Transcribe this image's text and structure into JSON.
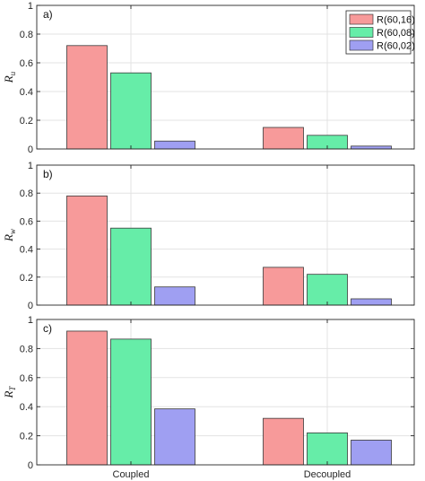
{
  "chart_data": [
    {
      "type": "bar",
      "panel_label": "a)",
      "ylabel": "R",
      "ylabel_sub": "u",
      "categories": [
        "Coupled",
        "Decoupled"
      ],
      "ylim": [
        0,
        1
      ],
      "yticks": [
        "0",
        "0.2",
        "0.4",
        "0.6",
        "0.8",
        "1"
      ],
      "grid": true,
      "legend": "top-right",
      "series": [
        {
          "name": "R(60,16)",
          "color": "#f79a9a",
          "values": [
            0.72,
            0.15
          ]
        },
        {
          "name": "R(60,08)",
          "color": "#66eda8",
          "values": [
            0.53,
            0.095
          ]
        },
        {
          "name": "R(60,02)",
          "color": "#9f9ff2",
          "values": [
            0.055,
            0.02
          ]
        }
      ]
    },
    {
      "type": "bar",
      "panel_label": "b)",
      "ylabel": "R",
      "ylabel_sub": "w",
      "categories": [
        "Coupled",
        "Decoupled"
      ],
      "ylim": [
        0,
        1
      ],
      "yticks": [
        "0",
        "0.2",
        "0.4",
        "0.6",
        "0.8",
        "1"
      ],
      "grid": true,
      "series": [
        {
          "name": "R(60,16)",
          "color": "#f79a9a",
          "values": [
            0.78,
            0.27
          ]
        },
        {
          "name": "R(60,08)",
          "color": "#66eda8",
          "values": [
            0.55,
            0.22
          ]
        },
        {
          "name": "R(60,02)",
          "color": "#9f9ff2",
          "values": [
            0.13,
            0.045
          ]
        }
      ]
    },
    {
      "type": "bar",
      "panel_label": "c)",
      "ylabel": "R",
      "ylabel_sub": "T",
      "categories": [
        "Coupled",
        "Decoupled"
      ],
      "ylim": [
        0,
        1
      ],
      "yticks": [
        "0",
        "0.2",
        "0.4",
        "0.6",
        "0.8",
        "1"
      ],
      "grid": true,
      "series": [
        {
          "name": "R(60,16)",
          "color": "#f79a9a",
          "values": [
            0.92,
            0.32
          ]
        },
        {
          "name": "R(60,08)",
          "color": "#66eda8",
          "values": [
            0.865,
            0.22
          ]
        },
        {
          "name": "R(60,02)",
          "color": "#9f9ff2",
          "values": [
            0.385,
            0.17
          ]
        }
      ]
    }
  ]
}
